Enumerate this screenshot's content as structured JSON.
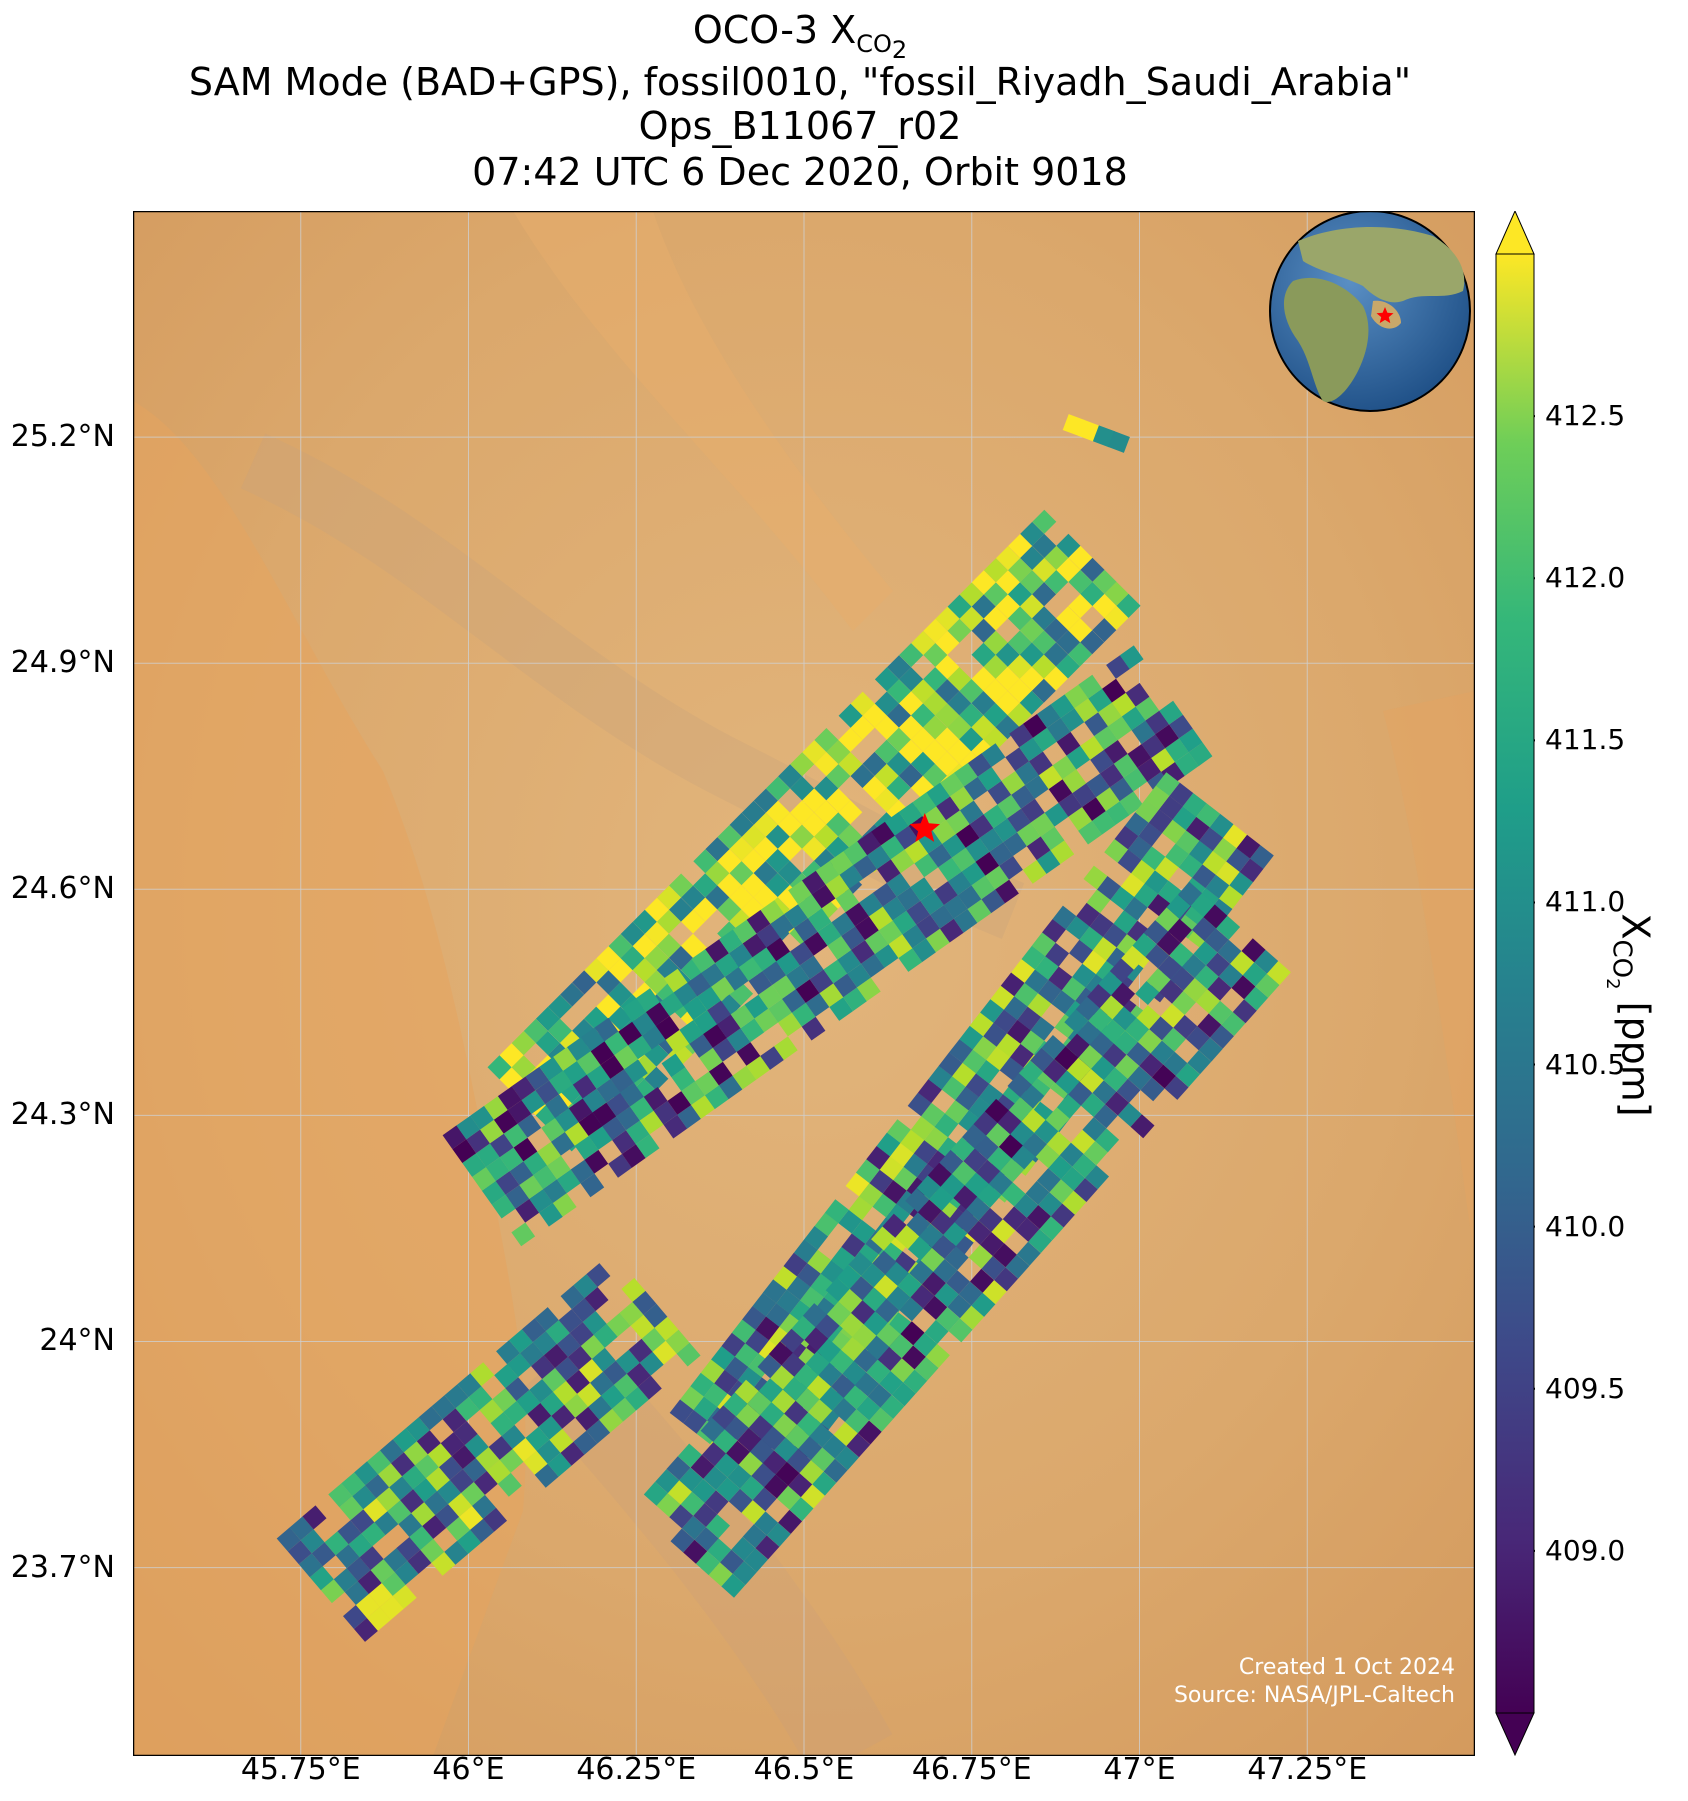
{
  "title": {
    "line1_prefix": "OCO-3 X",
    "line1_sub": "CO",
    "line1_subsub": "2",
    "line2": "SAM Mode (BAD+GPS), fossil0010, \"fossil_Riyadh_Saudi_Arabia\"",
    "line3": "Ops_B11067_r02",
    "line4": "07:42 UTC 6 Dec 2020, Orbit 9018"
  },
  "map": {
    "lon_range": [
      45.5,
      47.5
    ],
    "lat_range": [
      23.45,
      25.5
    ],
    "lat_ticks": [
      "25.2°N",
      "24.9°N",
      "24.6°N",
      "24.3°N",
      "24°N",
      "23.7°N"
    ],
    "lat_values": [
      25.2,
      24.9,
      24.6,
      24.3,
      24.0,
      23.7
    ],
    "lon_ticks": [
      "45.75°E",
      "46°E",
      "46.25°E",
      "46.5°E",
      "46.75°E",
      "47°E",
      "47.25°E"
    ],
    "lon_values": [
      45.75,
      46.0,
      46.25,
      46.5,
      46.75,
      47.0,
      47.25
    ],
    "gridlines": true,
    "target_marker": {
      "lon": 46.68,
      "lat": 24.68,
      "symbol": "star",
      "color": "#ff0000"
    },
    "inset_globe": "globe-inset-icon",
    "credit_line1": "Created 1 Oct 2024",
    "credit_line2": "Source: NASA/JPL-Caltech"
  },
  "colorbar": {
    "colormap": "viridis",
    "range": [
      408.5,
      413.0
    ],
    "ticks": [
      "412.5",
      "412.0",
      "411.5",
      "411.0",
      "410.5",
      "410.0",
      "409.5",
      "409.0"
    ],
    "tick_values": [
      412.5,
      412.0,
      411.5,
      411.0,
      410.5,
      410.0,
      409.5,
      409.0
    ],
    "label_prefix": "X",
    "label_sub": "CO",
    "label_subsub": "2",
    "label_suffix": " [ppm]",
    "extend": "both"
  },
  "chart_data": {
    "type": "heatmap",
    "xlabel": "",
    "ylabel": "",
    "colorbar_label": "XCO2 [ppm]",
    "value_range": [
      408.5,
      413.0
    ],
    "swaths": [
      {
        "lon_start": 46.1,
        "lat_start": 24.3,
        "lon_end": 46.93,
        "lat_end": 25.04,
        "mean_xco2": 412.0
      },
      {
        "lon_start": 46.02,
        "lat_start": 24.2,
        "lon_end": 47.05,
        "lat_end": 24.85,
        "mean_xco2": 410.5
      },
      {
        "lon_start": 46.38,
        "lat_start": 23.85,
        "lon_end": 47.12,
        "lat_end": 24.7,
        "mean_xco2": 410.8
      },
      {
        "lon_start": 46.32,
        "lat_start": 23.72,
        "lon_end": 47.15,
        "lat_end": 24.55,
        "mean_xco2": 410.6
      },
      {
        "lon_start": 45.78,
        "lat_start": 23.67,
        "lon_end": 46.28,
        "lat_end": 24.05,
        "mean_xco2": 410.9
      },
      {
        "lon_start": 46.89,
        "lat_start": 25.22,
        "lon_end": 46.98,
        "lat_end": 25.19,
        "mean_xco2": 411.6
      }
    ]
  }
}
